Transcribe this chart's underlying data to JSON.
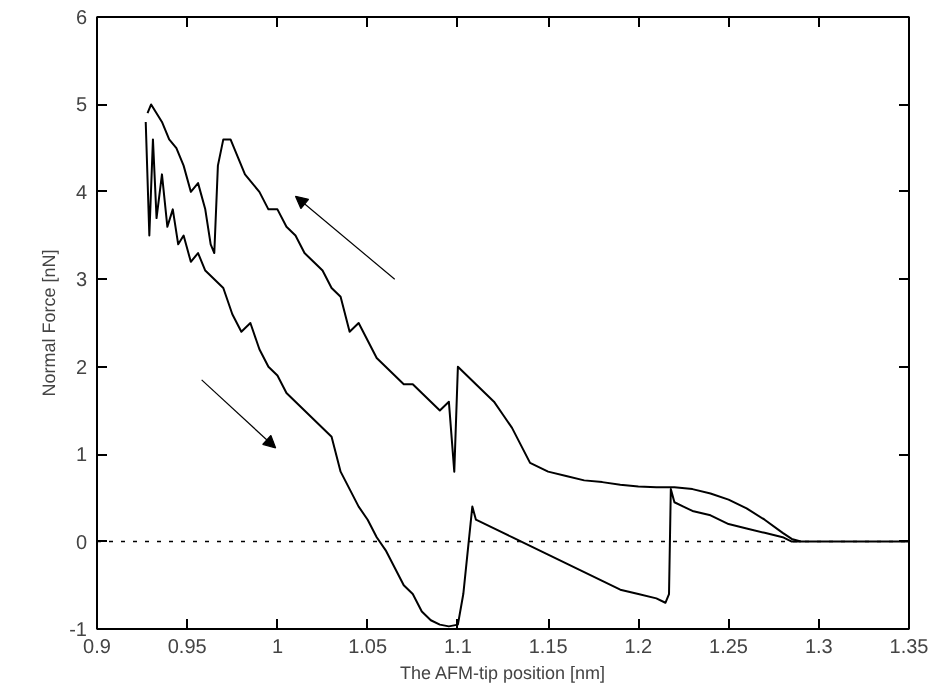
{
  "chart_data": {
    "type": "line",
    "xlabel": "The AFM-tip position [nm]",
    "ylabel": "Normal Force [nN]",
    "xlim": [
      0.9,
      1.35
    ],
    "ylim": [
      -1,
      6
    ],
    "xticks": [
      0.9,
      0.95,
      1,
      1.05,
      1.1,
      1.15,
      1.2,
      1.25,
      1.3,
      1.35
    ],
    "yticks": [
      -1,
      0,
      1,
      2,
      3,
      4,
      5,
      6
    ],
    "grid": false,
    "marker": "none",
    "line_style": "solid",
    "ref_lines": [
      {
        "axis": "y",
        "value": 0,
        "line_style": "dotted",
        "color": "#000000"
      }
    ],
    "series": [
      {
        "color": "#000000",
        "x": [
          0.927,
          0.929,
          0.931,
          0.933,
          0.936,
          0.939,
          0.942,
          0.945,
          0.948,
          0.952,
          0.956,
          0.96,
          0.965,
          0.97,
          0.975,
          0.98,
          0.985,
          0.99,
          0.995,
          1.0,
          1.005,
          1.01,
          1.015,
          1.02,
          1.025,
          1.03,
          1.035,
          1.04,
          1.045,
          1.05,
          1.055,
          1.06,
          1.065,
          1.07,
          1.075,
          1.08,
          1.085,
          1.09,
          1.095,
          1.1,
          1.103,
          1.105,
          1.107,
          1.108,
          1.11,
          1.12,
          1.13,
          1.14,
          1.15,
          1.16,
          1.17,
          1.18,
          1.19,
          1.2,
          1.21,
          1.215,
          1.217,
          1.218,
          1.22,
          1.225,
          1.23,
          1.24,
          1.25,
          1.26,
          1.27,
          1.28,
          1.285,
          1.29,
          1.3,
          1.35
        ],
        "values": [
          4.8,
          3.5,
          4.6,
          3.7,
          4.2,
          3.6,
          3.8,
          3.4,
          3.5,
          3.2,
          3.3,
          3.1,
          3.0,
          2.9,
          2.6,
          2.4,
          2.5,
          2.2,
          2.0,
          1.9,
          1.7,
          1.6,
          1.5,
          1.4,
          1.3,
          1.2,
          0.8,
          0.6,
          0.4,
          0.25,
          0.05,
          -0.1,
          -0.3,
          -0.5,
          -0.6,
          -0.8,
          -0.9,
          -0.95,
          -0.97,
          -0.95,
          -0.6,
          -0.2,
          0.2,
          0.4,
          0.25,
          0.15,
          0.05,
          -0.05,
          -0.15,
          -0.25,
          -0.35,
          -0.45,
          -0.55,
          -0.6,
          -0.65,
          -0.7,
          -0.6,
          0.6,
          0.45,
          0.4,
          0.35,
          0.3,
          0.2,
          0.15,
          0.1,
          0.05,
          0.0,
          0.0,
          0.0,
          0.0
        ]
      },
      {
        "color": "#000000",
        "x": [
          0.928,
          0.93,
          0.933,
          0.936,
          0.94,
          0.944,
          0.948,
          0.952,
          0.956,
          0.96,
          0.963,
          0.965,
          0.967,
          0.97,
          0.974,
          0.978,
          0.982,
          0.986,
          0.99,
          0.995,
          1.0,
          1.005,
          1.01,
          1.015,
          1.02,
          1.025,
          1.03,
          1.035,
          1.04,
          1.045,
          1.05,
          1.055,
          1.06,
          1.065,
          1.07,
          1.075,
          1.08,
          1.085,
          1.09,
          1.095,
          1.098,
          1.1,
          1.105,
          1.11,
          1.115,
          1.12,
          1.125,
          1.13,
          1.135,
          1.14,
          1.15,
          1.16,
          1.17,
          1.18,
          1.19,
          1.2,
          1.21,
          1.22,
          1.23,
          1.24,
          1.25,
          1.26,
          1.27,
          1.28,
          1.285,
          1.29
        ],
        "values": [
          4.9,
          5.0,
          4.9,
          4.8,
          4.6,
          4.5,
          4.3,
          4.0,
          4.1,
          3.8,
          3.4,
          3.3,
          4.3,
          4.6,
          4.6,
          4.4,
          4.2,
          4.1,
          4.0,
          3.8,
          3.8,
          3.6,
          3.5,
          3.3,
          3.2,
          3.1,
          2.9,
          2.8,
          2.4,
          2.5,
          2.3,
          2.1,
          2.0,
          1.9,
          1.8,
          1.8,
          1.7,
          1.6,
          1.5,
          1.6,
          0.8,
          2.0,
          1.9,
          1.8,
          1.7,
          1.6,
          1.45,
          1.3,
          1.1,
          0.9,
          0.8,
          0.75,
          0.7,
          0.68,
          0.65,
          0.63,
          0.62,
          0.62,
          0.6,
          0.55,
          0.48,
          0.38,
          0.25,
          0.1,
          0.03,
          0.0
        ]
      }
    ]
  }
}
